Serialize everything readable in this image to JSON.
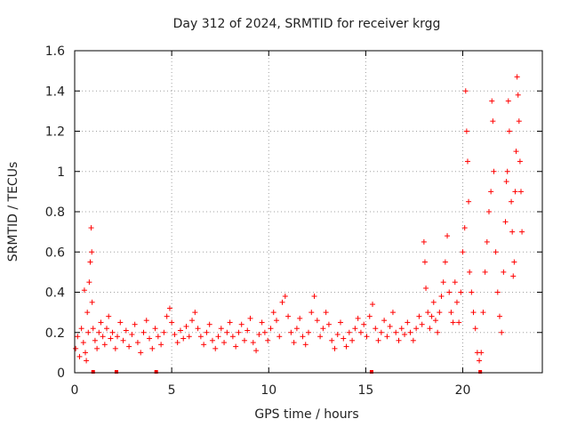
{
  "chart_data": {
    "type": "scatter",
    "title": "Day 312 of 2024, SRMTID for receiver krgg",
    "xlabel": "GPS time / hours",
    "ylabel": "SRMTID / TECUs",
    "xlim": [
      0,
      24.1
    ],
    "ylim": [
      0,
      1.6
    ],
    "x_ticks": [
      {
        "value": 0,
        "label": "0"
      },
      {
        "value": 5,
        "label": "5"
      },
      {
        "value": 10,
        "label": "10"
      },
      {
        "value": 15,
        "label": "15"
      },
      {
        "value": 20,
        "label": "20"
      }
    ],
    "y_ticks": [
      {
        "value": 0,
        "label": "0"
      },
      {
        "value": 0.2,
        "label": "0.2"
      },
      {
        "value": 0.4,
        "label": "0.4"
      },
      {
        "value": 0.6,
        "label": "0.6"
      },
      {
        "value": 0.8,
        "label": "0.8"
      },
      {
        "value": 1.0,
        "label": "1"
      },
      {
        "value": 1.2,
        "label": "1.2"
      },
      {
        "value": 1.4,
        "label": "1.4"
      },
      {
        "value": 1.6,
        "label": "1.6"
      }
    ],
    "grid": true,
    "marker": "+",
    "series": [
      {
        "name": "SRMTID",
        "color": "#ff0000",
        "points": [
          [
            0.05,
            0.12
          ],
          [
            0.15,
            0.18
          ],
          [
            0.25,
            0.08
          ],
          [
            0.35,
            0.22
          ],
          [
            0.45,
            0.15
          ],
          [
            0.5,
            0.41
          ],
          [
            0.55,
            0.1
          ],
          [
            0.6,
            0.06
          ],
          [
            0.65,
            0.3
          ],
          [
            0.7,
            0.2
          ],
          [
            0.75,
            0.45
          ],
          [
            0.8,
            0.55
          ],
          [
            0.85,
            0.72
          ],
          [
            0.88,
            0.6
          ],
          [
            0.9,
            0.35
          ],
          [
            0.95,
            0.22
          ],
          [
            1.05,
            0.16
          ],
          [
            1.15,
            0.12
          ],
          [
            1.25,
            0.2
          ],
          [
            1.35,
            0.25
          ],
          [
            1.45,
            0.18
          ],
          [
            1.55,
            0.14
          ],
          [
            1.65,
            0.22
          ],
          [
            1.75,
            0.28
          ],
          [
            1.85,
            0.17
          ],
          [
            1.95,
            0.2
          ],
          [
            2.1,
            0.12
          ],
          [
            2.2,
            0.18
          ],
          [
            2.35,
            0.25
          ],
          [
            2.5,
            0.16
          ],
          [
            2.65,
            0.21
          ],
          [
            2.8,
            0.13
          ],
          [
            2.95,
            0.19
          ],
          [
            3.1,
            0.24
          ],
          [
            3.25,
            0.15
          ],
          [
            3.4,
            0.1
          ],
          [
            3.55,
            0.2
          ],
          [
            3.7,
            0.26
          ],
          [
            3.85,
            0.17
          ],
          [
            4.0,
            0.12
          ],
          [
            4.15,
            0.22
          ],
          [
            4.3,
            0.18
          ],
          [
            4.45,
            0.14
          ],
          [
            4.6,
            0.2
          ],
          [
            4.75,
            0.28
          ],
          [
            4.9,
            0.32
          ],
          [
            5.0,
            0.25
          ],
          [
            5.15,
            0.19
          ],
          [
            5.3,
            0.15
          ],
          [
            5.45,
            0.21
          ],
          [
            5.6,
            0.17
          ],
          [
            5.75,
            0.23
          ],
          [
            5.9,
            0.18
          ],
          [
            6.05,
            0.26
          ],
          [
            6.2,
            0.3
          ],
          [
            6.35,
            0.22
          ],
          [
            6.5,
            0.18
          ],
          [
            6.65,
            0.14
          ],
          [
            6.8,
            0.2
          ],
          [
            6.95,
            0.24
          ],
          [
            7.1,
            0.16
          ],
          [
            7.25,
            0.12
          ],
          [
            7.4,
            0.18
          ],
          [
            7.55,
            0.22
          ],
          [
            7.7,
            0.15
          ],
          [
            7.85,
            0.2
          ],
          [
            8.0,
            0.25
          ],
          [
            8.15,
            0.18
          ],
          [
            8.3,
            0.13
          ],
          [
            8.45,
            0.2
          ],
          [
            8.6,
            0.24
          ],
          [
            8.75,
            0.16
          ],
          [
            8.9,
            0.21
          ],
          [
            9.05,
            0.27
          ],
          [
            9.2,
            0.15
          ],
          [
            9.35,
            0.11
          ],
          [
            9.5,
            0.19
          ],
          [
            9.65,
            0.25
          ],
          [
            9.8,
            0.2
          ],
          [
            9.95,
            0.16
          ],
          [
            10.1,
            0.22
          ],
          [
            10.25,
            0.3
          ],
          [
            10.4,
            0.26
          ],
          [
            10.55,
            0.18
          ],
          [
            10.7,
            0.35
          ],
          [
            10.85,
            0.38
          ],
          [
            11.0,
            0.28
          ],
          [
            11.15,
            0.2
          ],
          [
            11.3,
            0.15
          ],
          [
            11.45,
            0.22
          ],
          [
            11.6,
            0.27
          ],
          [
            11.75,
            0.18
          ],
          [
            11.9,
            0.14
          ],
          [
            12.05,
            0.2
          ],
          [
            12.2,
            0.3
          ],
          [
            12.35,
            0.38
          ],
          [
            12.5,
            0.26
          ],
          [
            12.65,
            0.18
          ],
          [
            12.8,
            0.22
          ],
          [
            12.95,
            0.3
          ],
          [
            13.1,
            0.24
          ],
          [
            13.25,
            0.16
          ],
          [
            13.4,
            0.12
          ],
          [
            13.55,
            0.19
          ],
          [
            13.7,
            0.25
          ],
          [
            13.85,
            0.17
          ],
          [
            14.0,
            0.13
          ],
          [
            14.15,
            0.2
          ],
          [
            14.3,
            0.16
          ],
          [
            14.45,
            0.22
          ],
          [
            14.6,
            0.27
          ],
          [
            14.75,
            0.2
          ],
          [
            14.9,
            0.24
          ],
          [
            15.05,
            0.18
          ],
          [
            15.2,
            0.28
          ],
          [
            15.35,
            0.34
          ],
          [
            15.5,
            0.22
          ],
          [
            15.65,
            0.16
          ],
          [
            15.8,
            0.2
          ],
          [
            15.95,
            0.26
          ],
          [
            16.1,
            0.18
          ],
          [
            16.25,
            0.23
          ],
          [
            16.4,
            0.3
          ],
          [
            16.55,
            0.2
          ],
          [
            16.7,
            0.16
          ],
          [
            16.85,
            0.22
          ],
          [
            17.0,
            0.19
          ],
          [
            17.15,
            0.25
          ],
          [
            17.3,
            0.2
          ],
          [
            17.45,
            0.16
          ],
          [
            17.6,
            0.22
          ],
          [
            17.75,
            0.28
          ],
          [
            17.9,
            0.24
          ],
          [
            18.0,
            0.65
          ],
          [
            18.05,
            0.55
          ],
          [
            18.1,
            0.42
          ],
          [
            18.2,
            0.3
          ],
          [
            18.3,
            0.22
          ],
          [
            18.4,
            0.28
          ],
          [
            18.5,
            0.35
          ],
          [
            18.6,
            0.26
          ],
          [
            18.7,
            0.2
          ],
          [
            18.8,
            0.3
          ],
          [
            18.9,
            0.38
          ],
          [
            19.0,
            0.45
          ],
          [
            19.1,
            0.55
          ],
          [
            19.2,
            0.68
          ],
          [
            19.3,
            0.4
          ],
          [
            19.4,
            0.3
          ],
          [
            19.5,
            0.25
          ],
          [
            19.6,
            0.45
          ],
          [
            19.7,
            0.35
          ],
          [
            19.8,
            0.25
          ],
          [
            19.9,
            0.4
          ],
          [
            20.0,
            0.6
          ],
          [
            20.1,
            0.72
          ],
          [
            20.15,
            1.4
          ],
          [
            20.2,
            1.2
          ],
          [
            20.25,
            1.05
          ],
          [
            20.3,
            0.85
          ],
          [
            20.35,
            0.5
          ],
          [
            20.45,
            0.4
          ],
          [
            20.55,
            0.3
          ],
          [
            20.65,
            0.22
          ],
          [
            20.75,
            0.1
          ],
          [
            20.85,
            0.06
          ],
          [
            20.95,
            0.1
          ],
          [
            21.05,
            0.3
          ],
          [
            21.15,
            0.5
          ],
          [
            21.25,
            0.65
          ],
          [
            21.35,
            0.8
          ],
          [
            21.45,
            0.9
          ],
          [
            21.5,
            1.35
          ],
          [
            21.55,
            1.25
          ],
          [
            21.6,
            1.0
          ],
          [
            21.7,
            0.6
          ],
          [
            21.8,
            0.4
          ],
          [
            21.9,
            0.28
          ],
          [
            22.0,
            0.2
          ],
          [
            22.1,
            0.5
          ],
          [
            22.2,
            0.75
          ],
          [
            22.25,
            0.95
          ],
          [
            22.3,
            1.0
          ],
          [
            22.35,
            1.35
          ],
          [
            22.4,
            1.2
          ],
          [
            22.5,
            0.85
          ],
          [
            22.55,
            0.7
          ],
          [
            22.6,
            0.48
          ],
          [
            22.65,
            0.55
          ],
          [
            22.7,
            0.9
          ],
          [
            22.75,
            1.1
          ],
          [
            22.8,
            1.47
          ],
          [
            22.85,
            1.38
          ],
          [
            22.9,
            1.25
          ],
          [
            22.95,
            1.05
          ],
          [
            23.0,
            0.9
          ],
          [
            23.05,
            0.7
          ]
        ]
      }
    ],
    "gap_marks_x": [
      0.95,
      2.15,
      4.2,
      15.3,
      20.9
    ]
  }
}
